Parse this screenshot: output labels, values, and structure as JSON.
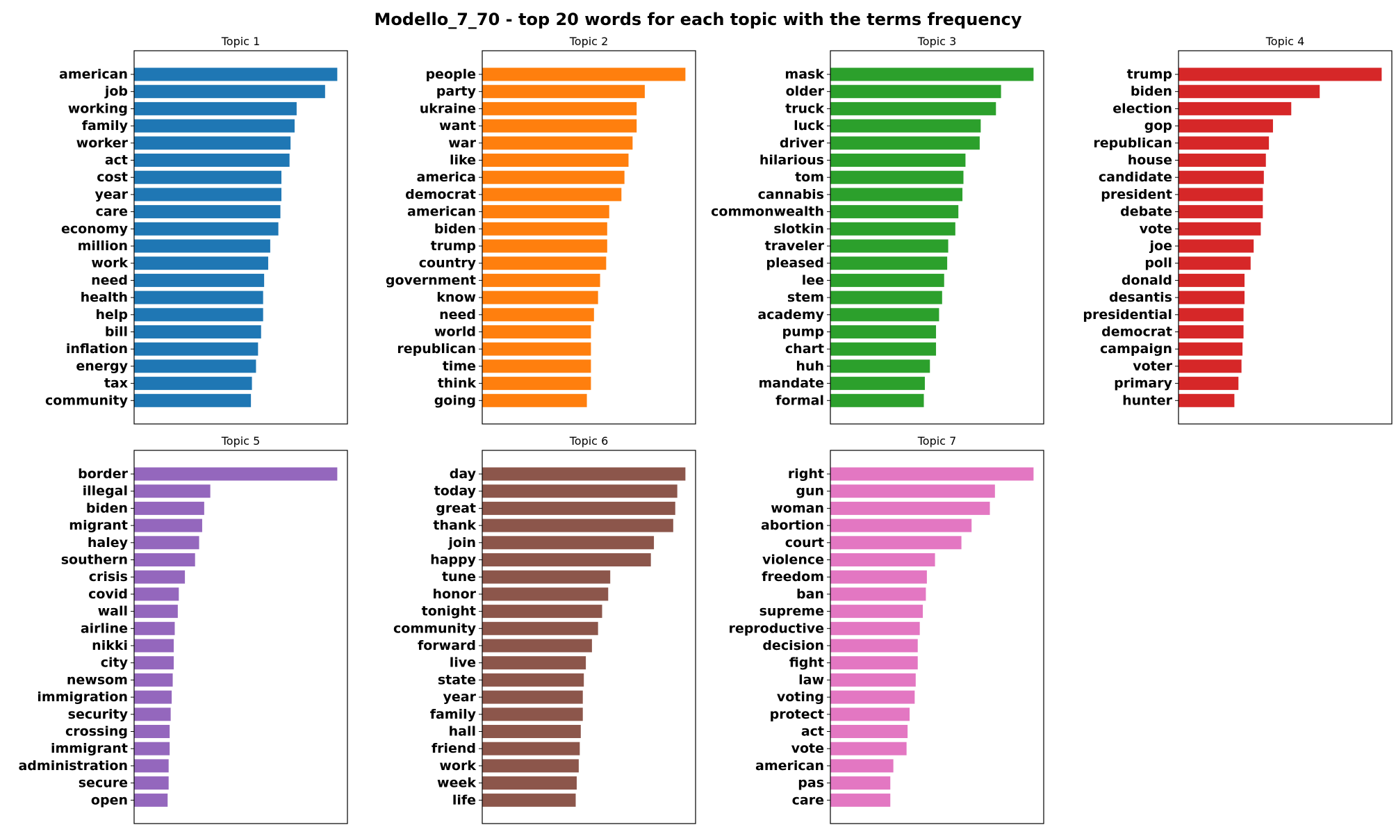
{
  "title": "Modello_7_70 - top 20 words for each topic with the terms frequency",
  "chart_data": [
    {
      "type": "bar",
      "orientation": "horizontal",
      "title": "Topic 1",
      "color": "#1f77b4",
      "categories": [
        "american",
        "job",
        "working",
        "family",
        "worker",
        "act",
        "cost",
        "year",
        "care",
        "economy",
        "million",
        "work",
        "need",
        "health",
        "help",
        "bill",
        "inflation",
        "energy",
        "tax",
        "community"
      ],
      "values": [
        1.0,
        0.94,
        0.8,
        0.79,
        0.77,
        0.765,
        0.725,
        0.725,
        0.72,
        0.71,
        0.67,
        0.66,
        0.64,
        0.635,
        0.635,
        0.625,
        0.61,
        0.6,
        0.58,
        0.575
      ],
      "xlim": [
        0,
        1.05
      ]
    },
    {
      "type": "bar",
      "orientation": "horizontal",
      "title": "Topic 2",
      "color": "#ff7f0e",
      "categories": [
        "people",
        "party",
        "ukraine",
        "want",
        "war",
        "like",
        "america",
        "democrat",
        "american",
        "biden",
        "trump",
        "country",
        "government",
        "know",
        "need",
        "world",
        "republican",
        "time",
        "think",
        "going"
      ],
      "values": [
        1.0,
        0.8,
        0.76,
        0.76,
        0.74,
        0.72,
        0.7,
        0.685,
        0.625,
        0.615,
        0.615,
        0.61,
        0.58,
        0.57,
        0.55,
        0.535,
        0.535,
        0.535,
        0.535,
        0.515
      ],
      "xlim": [
        0,
        1.05
      ]
    },
    {
      "type": "bar",
      "orientation": "horizontal",
      "title": "Topic 3",
      "color": "#2ca02c",
      "categories": [
        "mask",
        "older",
        "truck",
        "luck",
        "driver",
        "hilarious",
        "tom",
        "cannabis",
        "commonwealth",
        "slotkin",
        "traveler",
        "pleased",
        "lee",
        "stem",
        "academy",
        "pump",
        "chart",
        "huh",
        "mandate",
        "formal"
      ],
      "values": [
        1.0,
        0.84,
        0.815,
        0.74,
        0.735,
        0.665,
        0.655,
        0.65,
        0.63,
        0.615,
        0.58,
        0.575,
        0.56,
        0.55,
        0.535,
        0.52,
        0.52,
        0.49,
        0.465,
        0.46
      ],
      "xlim": [
        0,
        1.05
      ]
    },
    {
      "type": "bar",
      "orientation": "horizontal",
      "title": "Topic 4",
      "color": "#d62728",
      "categories": [
        "trump",
        "biden",
        "election",
        "gop",
        "republican",
        "house",
        "candidate",
        "president",
        "debate",
        "vote",
        "joe",
        "poll",
        "donald",
        "desantis",
        "presidential",
        "democrat",
        "campaign",
        "voter",
        "primary",
        "hunter"
      ],
      "values": [
        1.0,
        0.695,
        0.555,
        0.465,
        0.445,
        0.43,
        0.42,
        0.415,
        0.415,
        0.405,
        0.37,
        0.355,
        0.325,
        0.325,
        0.32,
        0.32,
        0.315,
        0.31,
        0.295,
        0.275
      ],
      "xlim": [
        0,
        1.05
      ]
    },
    {
      "type": "bar",
      "orientation": "horizontal",
      "title": "Topic 5",
      "color": "#9467bd",
      "categories": [
        "border",
        "illegal",
        "biden",
        "migrant",
        "haley",
        "southern",
        "crisis",
        "covid",
        "wall",
        "airline",
        "nikki",
        "city",
        "newsom",
        "immigration",
        "security",
        "crossing",
        "immigrant",
        "administration",
        "secure",
        "open"
      ],
      "values": [
        1.0,
        0.375,
        0.345,
        0.335,
        0.32,
        0.3,
        0.25,
        0.22,
        0.215,
        0.2,
        0.195,
        0.195,
        0.19,
        0.185,
        0.18,
        0.175,
        0.175,
        0.17,
        0.17,
        0.165
      ],
      "xlim": [
        0,
        1.05
      ]
    },
    {
      "type": "bar",
      "orientation": "horizontal",
      "title": "Topic 6",
      "color": "#8c564b",
      "categories": [
        "day",
        "today",
        "great",
        "thank",
        "join",
        "happy",
        "tune",
        "honor",
        "tonight",
        "community",
        "forward",
        "live",
        "state",
        "year",
        "family",
        "hall",
        "friend",
        "work",
        "week",
        "life"
      ],
      "values": [
        1.0,
        0.96,
        0.95,
        0.94,
        0.845,
        0.83,
        0.63,
        0.62,
        0.59,
        0.57,
        0.54,
        0.51,
        0.5,
        0.495,
        0.495,
        0.485,
        0.48,
        0.475,
        0.465,
        0.46
      ],
      "xlim": [
        0,
        1.05
      ]
    },
    {
      "type": "bar",
      "orientation": "horizontal",
      "title": "Topic 7",
      "color": "#e377c2",
      "categories": [
        "right",
        "gun",
        "woman",
        "abortion",
        "court",
        "violence",
        "freedom",
        "ban",
        "supreme",
        "reproductive",
        "decision",
        "fight",
        "law",
        "voting",
        "protect",
        "act",
        "vote",
        "american",
        "pas",
        "care"
      ],
      "values": [
        1.0,
        0.81,
        0.785,
        0.695,
        0.645,
        0.515,
        0.475,
        0.47,
        0.455,
        0.44,
        0.43,
        0.43,
        0.42,
        0.415,
        0.39,
        0.38,
        0.375,
        0.31,
        0.295,
        0.295
      ],
      "xlim": [
        0,
        1.05
      ]
    }
  ]
}
